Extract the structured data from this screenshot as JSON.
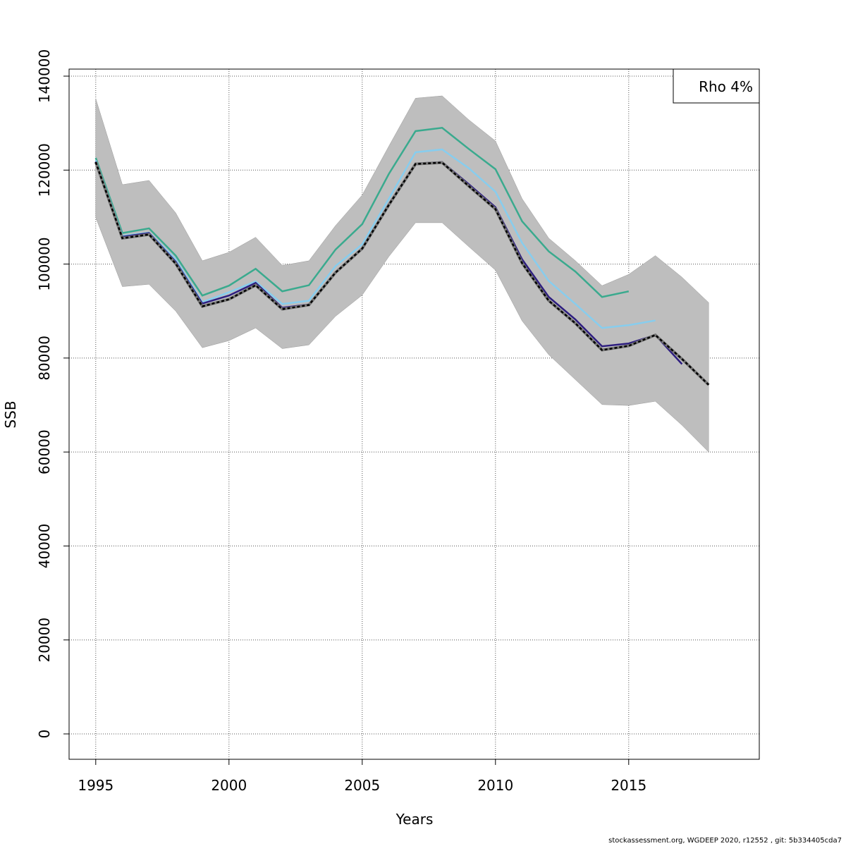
{
  "chart_data": {
    "type": "line",
    "title": "",
    "xlabel": "Years",
    "ylabel": "SSB",
    "xlim": [
      1994,
      2019.9
    ],
    "ylim": [
      -5400,
      141500
    ],
    "xticks": [
      1995,
      2000,
      2005,
      2010,
      2015
    ],
    "yticks": [
      0,
      20000,
      40000,
      60000,
      80000,
      100000,
      120000,
      140000
    ],
    "grid": true,
    "legend": {
      "text": "Rho 4%",
      "placement": "top-right"
    },
    "band": {
      "color": "#bebebe",
      "x": [
        1995,
        1996,
        1997,
        1998,
        1999,
        2000,
        2001,
        2002,
        2003,
        2004,
        2005,
        2006,
        2007,
        2008,
        2009,
        2010,
        2011,
        2012,
        2013,
        2014,
        2015,
        2016,
        2017,
        2018
      ],
      "upper": [
        135200,
        116900,
        117800,
        110900,
        100700,
        102500,
        105700,
        99700,
        100700,
        108200,
        114700,
        125100,
        135300,
        135800,
        130700,
        126200,
        113900,
        105500,
        100700,
        95400,
        97800,
        101800,
        97200,
        91800
      ],
      "lower": [
        109900,
        95200,
        95700,
        90000,
        82200,
        83700,
        86400,
        82000,
        82800,
        88900,
        93400,
        101600,
        108800,
        108800,
        103700,
        98700,
        87900,
        80700,
        75400,
        70100,
        69900,
        70800,
        65700,
        60000
      ]
    },
    "series": [
      {
        "color": "#3aaa8e",
        "x": [
          1995,
          1996,
          1997,
          1998,
          1999,
          2000,
          2001,
          2002,
          2003,
          2004,
          2005,
          2006,
          2007,
          2008,
          2009,
          2010,
          2011,
          2012,
          2013,
          2014,
          2015
        ],
        "values": [
          122600,
          106600,
          107600,
          101800,
          93300,
          95400,
          99000,
          94200,
          95500,
          103100,
          108500,
          119200,
          128300,
          129000,
          124500,
          120200,
          109100,
          102700,
          98400,
          93000,
          94200
        ]
      },
      {
        "color": "#87cdee",
        "x": [
          1995,
          1996,
          1997,
          1998,
          1999,
          2000,
          2001,
          2002,
          2003,
          2004,
          2005,
          2006,
          2007,
          2008,
          2009,
          2010,
          2011,
          2012,
          2013,
          2014,
          2015,
          2016
        ],
        "values": [
          122100,
          106000,
          106700,
          101000,
          91900,
          94000,
          96300,
          91500,
          92200,
          99600,
          104200,
          113900,
          123800,
          124400,
          120400,
          115400,
          104500,
          96400,
          91500,
          86400,
          87000,
          88000
        ]
      },
      {
        "color": "#2e1e80",
        "x": [
          1995,
          1996,
          1997,
          1998,
          1999,
          2000,
          2001,
          2002,
          2003,
          2004,
          2005,
          2006,
          2007,
          2008,
          2009,
          2010,
          2011,
          2012,
          2013,
          2014,
          2015,
          2016,
          2017
        ],
        "values": [
          121800,
          105800,
          106600,
          100500,
          91600,
          93300,
          96000,
          90700,
          91400,
          98300,
          103400,
          112800,
          121400,
          121700,
          117000,
          112100,
          101000,
          93000,
          88200,
          82500,
          83100,
          84900,
          78700
        ]
      },
      {
        "color": "#000000",
        "dashed": true,
        "x": [
          1995,
          1996,
          1997,
          1998,
          1999,
          2000,
          2001,
          2002,
          2003,
          2004,
          2005,
          2006,
          2007,
          2008,
          2009,
          2010,
          2011,
          2012,
          2013,
          2014,
          2015,
          2016,
          2017,
          2018
        ],
        "values": [
          121700,
          105500,
          106300,
          100100,
          91000,
          92500,
          95500,
          90400,
          91300,
          98200,
          103300,
          112600,
          121300,
          121600,
          116600,
          111700,
          100200,
          92200,
          87400,
          81700,
          82600,
          84900,
          79800,
          74300
        ]
      }
    ]
  },
  "footer": "stockassessment.org, WGDEEP  2020, r12552 , git: 5b334405cda7"
}
